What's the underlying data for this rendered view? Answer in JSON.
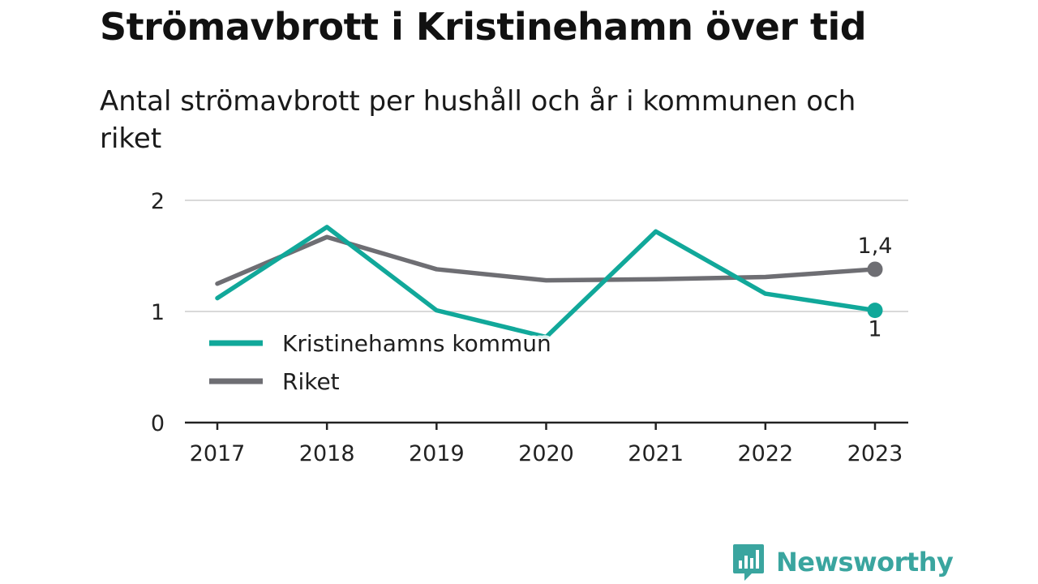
{
  "title": "Strömavbrott i Kristinehamn över tid",
  "subtitle": "Antal strömavbrott per hushåll och år i kommunen och riket",
  "brand": {
    "name": "Newsworthy",
    "icon": "newsworthy-logo-icon",
    "color": "#3aa59f"
  },
  "chart_data": {
    "type": "line",
    "x": [
      "2017",
      "2018",
      "2019",
      "2020",
      "2021",
      "2022",
      "2023"
    ],
    "ylim": [
      0,
      2
    ],
    "yticks": [
      0,
      1,
      2
    ],
    "grid": true,
    "legend_position": "lower-left",
    "series": [
      {
        "name": "Kristinehamns kommun",
        "color": "#11a89a",
        "values": [
          1.12,
          1.76,
          1.01,
          0.77,
          1.72,
          1.16,
          1.01
        ],
        "end_label": "1"
      },
      {
        "name": "Riket",
        "color": "#6e6e73",
        "values": [
          1.25,
          1.67,
          1.38,
          1.28,
          1.29,
          1.31,
          1.38
        ],
        "end_label": "1,4"
      }
    ]
  }
}
